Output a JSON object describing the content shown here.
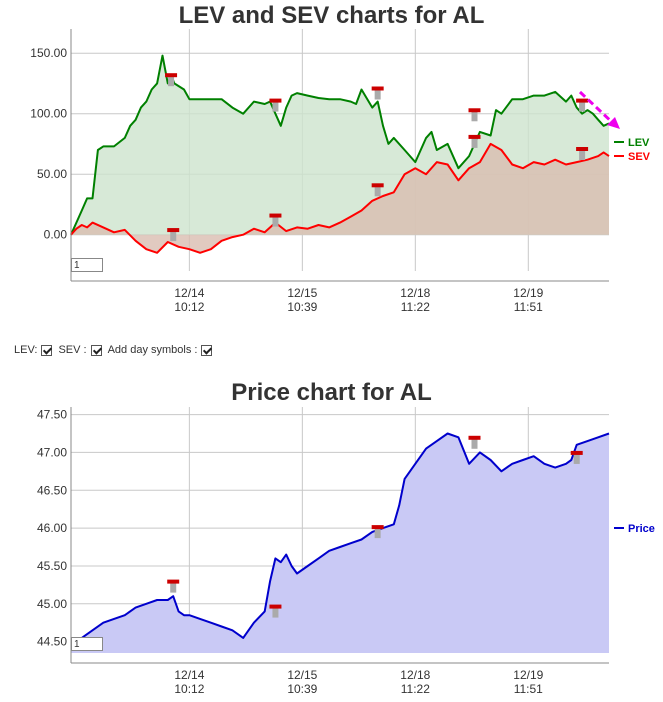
{
  "chart_data": [
    {
      "type": "area",
      "title": "LEV and SEV charts for AL",
      "x_labels": [
        {
          "x": 11,
          "line1": "12/14",
          "line2": "10:12"
        },
        {
          "x": 21.5,
          "line1": "12/15",
          "line2": "10:39"
        },
        {
          "x": 32,
          "line1": "12/18",
          "line2": "11:22"
        },
        {
          "x": 42.5,
          "line1": "12/19",
          "line2": "11:51"
        }
      ],
      "xlim": [
        0,
        50
      ],
      "ylim": [
        -30,
        170
      ],
      "y_ticks": [
        0,
        50,
        100,
        150
      ],
      "y_tick_labels": [
        "0.00",
        "50.00",
        "100.00",
        "150.00"
      ],
      "grid": true,
      "legend_position": "right",
      "series": [
        {
          "name": "LEV",
          "color": "#008000",
          "fill": "#cde3cd",
          "x": [
            0,
            0.5,
            1,
            1.5,
            2,
            2.5,
            3,
            4,
            5,
            5.5,
            6,
            6.5,
            7,
            7.5,
            8,
            8.5,
            9,
            9.3,
            9.6,
            10.5,
            11,
            12,
            13,
            14,
            15,
            16,
            17,
            18,
            18.5,
            19,
            19.5,
            20,
            20.5,
            21,
            22,
            23,
            24,
            25,
            26,
            26.5,
            27,
            28,
            28.5,
            29,
            29.5,
            30,
            31,
            32,
            33,
            33.5,
            34,
            35,
            36,
            37,
            38,
            39,
            39.5,
            40,
            41,
            42,
            43,
            44,
            45,
            46,
            46.5,
            47,
            47.5,
            48,
            48.5,
            49,
            49.5,
            50
          ],
          "values": [
            0,
            10,
            20,
            30,
            30,
            70,
            73,
            73,
            80,
            90,
            95,
            105,
            110,
            120,
            125,
            148,
            125,
            132,
            125,
            120,
            112,
            112,
            112,
            112,
            105,
            100,
            110,
            108,
            110,
            100,
            90,
            105,
            115,
            117,
            115,
            113,
            112,
            112,
            110,
            108,
            120,
            105,
            110,
            90,
            75,
            80,
            70,
            60,
            80,
            85,
            70,
            75,
            55,
            65,
            85,
            82,
            103,
            100,
            112,
            112,
            115,
            115,
            118,
            110,
            115,
            105,
            100,
            103,
            100,
            95,
            90,
            92
          ]
        },
        {
          "name": "SEV",
          "color": "#ff0000",
          "fill": "#d9bdb0",
          "x": [
            0,
            0.5,
            1,
            1.5,
            2,
            3,
            4,
            5,
            6,
            7,
            8,
            9,
            10,
            11,
            12,
            13,
            14,
            15,
            16,
            17,
            18,
            19,
            20,
            21,
            22,
            23,
            24,
            25,
            26,
            27,
            28,
            29,
            30,
            31,
            32,
            33,
            34,
            35,
            36,
            37,
            38,
            39,
            40,
            41,
            42,
            43,
            44,
            45,
            46,
            47,
            48,
            49,
            49.5,
            50
          ],
          "values": [
            0,
            5,
            8,
            6,
            10,
            6,
            2,
            4,
            -5,
            -12,
            -15,
            -6,
            -10,
            -12,
            -15,
            -12,
            -5,
            -2,
            0,
            5,
            2,
            10,
            3,
            6,
            5,
            8,
            6,
            10,
            15,
            20,
            28,
            32,
            35,
            50,
            55,
            50,
            60,
            58,
            45,
            55,
            60,
            75,
            70,
            58,
            55,
            60,
            58,
            62,
            58,
            60,
            62,
            65,
            68,
            65
          ]
        }
      ]
    },
    {
      "type": "area",
      "title": "Price chart for AL",
      "x_labels": [
        {
          "x": 11,
          "line1": "12/14",
          "line2": "10:12"
        },
        {
          "x": 21.5,
          "line1": "12/15",
          "line2": "10:39"
        },
        {
          "x": 32,
          "line1": "12/18",
          "line2": "11:22"
        },
        {
          "x": 42.5,
          "line1": "12/19",
          "line2": "11:51"
        }
      ],
      "xlim": [
        0,
        50
      ],
      "ylim": [
        44.35,
        47.6
      ],
      "y_ticks": [
        44.5,
        45.0,
        45.5,
        46.0,
        46.5,
        47.0,
        47.5
      ],
      "y_tick_labels": [
        "44.50",
        "45.00",
        "45.50",
        "46.00",
        "46.50",
        "47.00",
        "47.50"
      ],
      "grid": true,
      "legend_position": "right",
      "series": [
        {
          "name": "Price",
          "color": "#0000cc",
          "fill": "#c9c9f5",
          "x": [
            0,
            1,
            2,
            3,
            4,
            5,
            6,
            7,
            8,
            9,
            9.5,
            10,
            10.5,
            11,
            12,
            13,
            14,
            15,
            16,
            17,
            18,
            18.5,
            19,
            19.5,
            20,
            20.5,
            21,
            22,
            23,
            24,
            25,
            26,
            27,
            28,
            29,
            30,
            30.5,
            31,
            32,
            33,
            34,
            35,
            36,
            37,
            38,
            39,
            40,
            41,
            42,
            43,
            44,
            45,
            46,
            46.5,
            47,
            48,
            49,
            50
          ],
          "values": [
            44.5,
            44.55,
            44.65,
            44.75,
            44.8,
            44.85,
            44.95,
            45.0,
            45.05,
            45.05,
            45.1,
            44.9,
            44.85,
            44.85,
            44.8,
            44.75,
            44.7,
            44.65,
            44.55,
            44.75,
            44.9,
            45.3,
            45.6,
            45.55,
            45.65,
            45.5,
            45.4,
            45.5,
            45.6,
            45.7,
            45.75,
            45.8,
            45.85,
            45.95,
            46.0,
            46.05,
            46.3,
            46.65,
            46.85,
            47.05,
            47.15,
            47.25,
            47.2,
            46.85,
            47.0,
            46.9,
            46.75,
            46.85,
            46.9,
            46.95,
            46.85,
            46.8,
            46.85,
            46.9,
            47.1,
            47.15,
            47.2,
            47.25
          ]
        }
      ]
    }
  ],
  "symbols_chart1": [
    {
      "x": 9.3,
      "y": 131
    },
    {
      "x": 9.5,
      "y": 3
    },
    {
      "x": 19,
      "y": 110
    },
    {
      "x": 19,
      "y": 15
    },
    {
      "x": 28.5,
      "y": 120
    },
    {
      "x": 28.5,
      "y": 40
    },
    {
      "x": 37.5,
      "y": 102
    },
    {
      "x": 37.5,
      "y": 80
    },
    {
      "x": 47.5,
      "y": 110
    },
    {
      "x": 47.5,
      "y": 70
    }
  ],
  "symbols_chart2": [
    {
      "x": 9.5,
      "y": 45.28
    },
    {
      "x": 19,
      "y": 44.95
    },
    {
      "x": 28.5,
      "y": 46.0
    },
    {
      "x": 37.5,
      "y": 47.18
    },
    {
      "x": 47,
      "y": 46.98
    }
  ],
  "controls": {
    "lev_label": "LEV:",
    "sev_label": "SEV :",
    "day_symbols_label": "Add day symbols :"
  },
  "zoom": {
    "chart1_value": "1",
    "chart2_value": "1"
  }
}
